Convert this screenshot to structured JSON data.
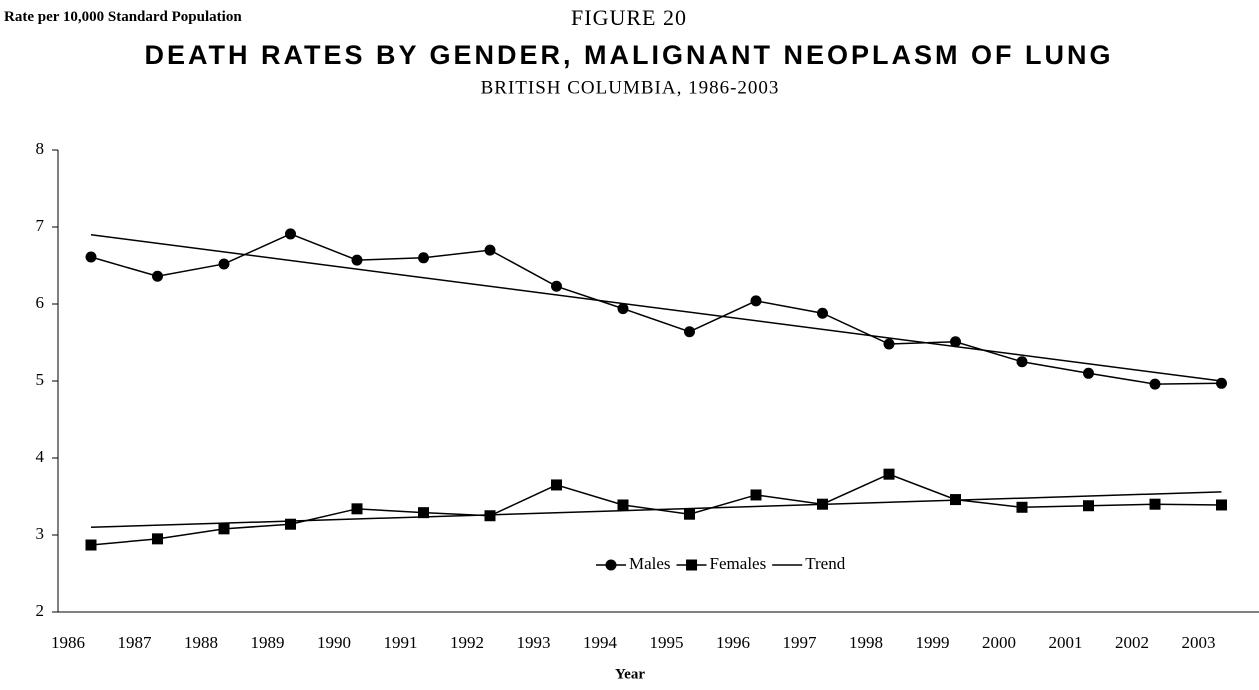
{
  "chart_data": {
    "type": "line",
    "title": "FIGURE 20",
    "subtitle": "DEATH RATES BY GENDER, MALIGNANT NEOPLASM OF LUNG",
    "caption": "BRITISH COLUMBIA, 1986-2003",
    "y_label": "Rate per 10,000 Standard Population",
    "x_label": "Year",
    "categories": [
      "1986",
      "1987",
      "1988",
      "1989",
      "1990",
      "1991",
      "1992",
      "1993",
      "1994",
      "1995",
      "1996",
      "1997",
      "1998",
      "1999",
      "2000",
      "2001",
      "2002",
      "2003"
    ],
    "series": [
      {
        "name": "Males",
        "color": "#000000",
        "marker": "circle",
        "values": [
          6.61,
          6.36,
          6.52,
          6.91,
          6.57,
          6.6,
          6.7,
          6.23,
          5.94,
          5.64,
          6.04,
          5.88,
          5.48,
          5.51,
          5.25,
          5.1,
          4.96,
          4.97
        ]
      },
      {
        "name": "Females",
        "color": "#000000",
        "marker": "square",
        "values": [
          2.87,
          2.95,
          3.08,
          3.14,
          3.34,
          3.29,
          3.25,
          3.65,
          3.39,
          3.27,
          3.52,
          3.4,
          3.79,
          3.46,
          3.36,
          3.38,
          3.4,
          3.39
        ]
      }
    ],
    "trend": {
      "name": "Trend",
      "color": "#000000",
      "lines": [
        [
          6.9,
          5.0
        ],
        [
          3.1,
          3.56
        ]
      ]
    },
    "ylim": [
      2,
      8
    ],
    "yticks": [
      2,
      3,
      4,
      5,
      6,
      7,
      8
    ]
  }
}
